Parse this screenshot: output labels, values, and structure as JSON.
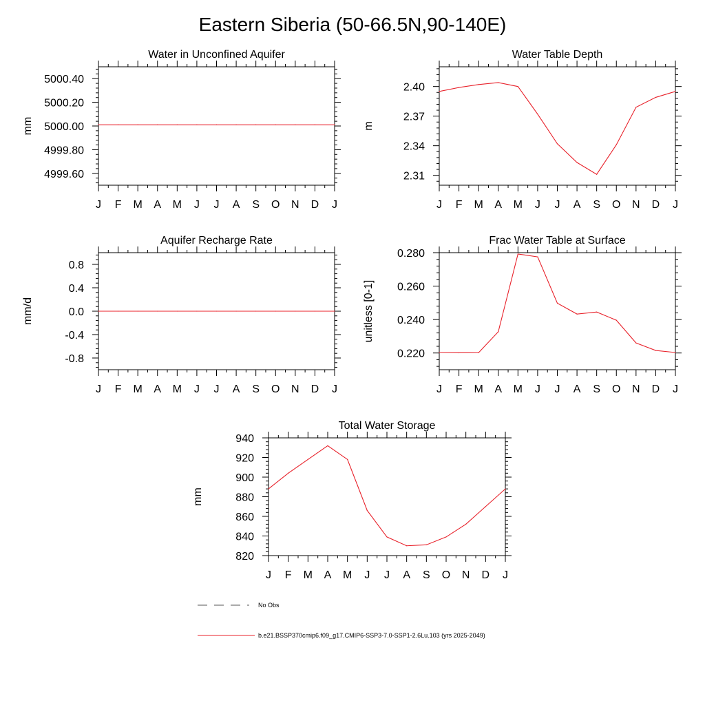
{
  "page": {
    "title": "Eastern Siberia (50-66.5N,90-140E)"
  },
  "month_labels": [
    "J",
    "F",
    "M",
    "A",
    "M",
    "J",
    "J",
    "A",
    "S",
    "O",
    "N",
    "D",
    "J"
  ],
  "colors": {
    "series": "#e8212a",
    "axis": "#000000",
    "obs": "#555555"
  },
  "legend": {
    "obs_label": "No Obs",
    "model_label": "b.e21.BSSP370cmip6.f09_g17.CMIP6-SSP3-7.0-SSP1-2.6Lu.103 (yrs 2025-2049)"
  },
  "chart_data": [
    {
      "id": "aquifer",
      "type": "line",
      "title": "Water in Unconfined Aquifer",
      "ylabel": "mm",
      "ylim": [
        4999.5,
        5000.5
      ],
      "yticks": [
        4999.6,
        4999.8,
        5000.0,
        5000.2,
        5000.4
      ],
      "ytick_labels": [
        "4999.60",
        "4999.80",
        "5000.00",
        "5000.20",
        "5000.40"
      ],
      "series": [
        {
          "values": [
            5000.01,
            5000.01,
            5000.01,
            5000.01,
            5000.01,
            5000.01,
            5000.01,
            5000.01,
            5000.01,
            5000.01,
            5000.01,
            5000.01,
            5000.01
          ]
        }
      ]
    },
    {
      "id": "wtd",
      "type": "line",
      "title": "Water Table Depth",
      "ylabel": "m",
      "ylim": [
        2.3,
        2.42
      ],
      "yticks": [
        2.31,
        2.34,
        2.37,
        2.4
      ],
      "ytick_labels": [
        "2.31",
        "2.34",
        "2.37",
        "2.40"
      ],
      "series": [
        {
          "values": [
            2.395,
            2.399,
            2.402,
            2.404,
            2.4,
            2.372,
            2.342,
            2.323,
            2.311,
            2.341,
            2.379,
            2.389,
            2.395
          ]
        }
      ]
    },
    {
      "id": "recharge",
      "type": "line",
      "title": "Aquifer Recharge Rate",
      "ylabel": "mm/d",
      "ylim": [
        -1.0,
        1.0
      ],
      "yticks": [
        -0.8,
        -0.4,
        0.0,
        0.4,
        0.8
      ],
      "ytick_labels": [
        "-0.8",
        "-0.4",
        "0.0",
        "0.4",
        "0.8"
      ],
      "series": [
        {
          "values": [
            0,
            0,
            0,
            0,
            0,
            0,
            0,
            0,
            0,
            0,
            0,
            0,
            0
          ]
        }
      ]
    },
    {
      "id": "fracwt",
      "type": "line",
      "title": "Frac Water Table at Surface",
      "ylabel": "unitless [0-1]",
      "ylim": [
        0.21,
        0.28
      ],
      "yticks": [
        0.22,
        0.24,
        0.26,
        0.28
      ],
      "ytick_labels": [
        "0.220",
        "0.240",
        "0.260",
        "0.280"
      ],
      "series": [
        {
          "values": [
            0.2203,
            0.2201,
            0.2202,
            0.2327,
            0.2792,
            0.2775,
            0.2498,
            0.2433,
            0.2445,
            0.2396,
            0.226,
            0.2215,
            0.2203
          ]
        }
      ]
    },
    {
      "id": "tws",
      "type": "line",
      "title": "Total Water Storage",
      "ylabel": "mm",
      "ylim": [
        820,
        940
      ],
      "yticks": [
        820,
        840,
        860,
        880,
        900,
        920,
        940
      ],
      "ytick_labels": [
        "820",
        "840",
        "860",
        "880",
        "900",
        "920",
        "940"
      ],
      "series": [
        {
          "values": [
            888,
            904,
            918,
            932,
            918,
            866,
            839,
            830,
            831,
            839,
            852,
            870,
            888
          ]
        }
      ]
    }
  ]
}
